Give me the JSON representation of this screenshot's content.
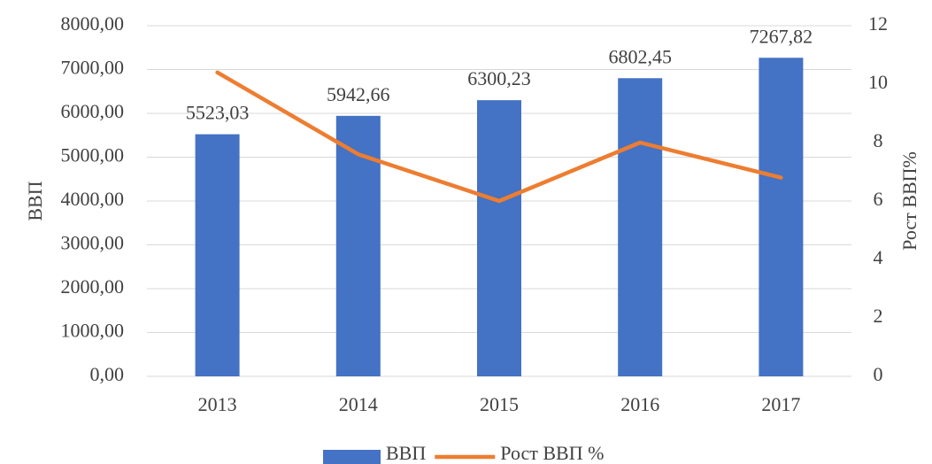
{
  "chart_data": {
    "type": "combo",
    "categories": [
      "2013",
      "2014",
      "2015",
      "2016",
      "2017"
    ],
    "series": [
      {
        "name": "ВВП",
        "type": "bar",
        "color": "#4472c4",
        "values": [
          5523.03,
          5942.66,
          6300.23,
          6802.45,
          7267.82
        ],
        "value_labels": [
          "5523,03",
          "5942,66",
          "6300,23",
          "6802,45",
          "7267,82"
        ]
      },
      {
        "name": "Рост ВВП %",
        "type": "line",
        "axis": "y2",
        "color": "#ed7d31",
        "values": [
          10.4,
          7.6,
          6.0,
          8.0,
          6.8
        ]
      }
    ],
    "ylabel": "ВВП",
    "y2label": "Рост ВВП%",
    "ylim": [
      0,
      8000
    ],
    "yticks": [
      {
        "value": 0,
        "label": "0,00"
      },
      {
        "value": 1000,
        "label": "1000,00"
      },
      {
        "value": 2000,
        "label": "2000,00"
      },
      {
        "value": 3000,
        "label": "3000,00"
      },
      {
        "value": 4000,
        "label": "4000,00"
      },
      {
        "value": 5000,
        "label": "5000,00"
      },
      {
        "value": 6000,
        "label": "6000,00"
      },
      {
        "value": 7000,
        "label": "7000,00"
      },
      {
        "value": 8000,
        "label": "8000,00"
      }
    ],
    "y2lim": [
      0,
      12
    ],
    "y2ticks": [
      0,
      2,
      4,
      6,
      8,
      10,
      12
    ],
    "grid": true,
    "legend": "bottom"
  }
}
